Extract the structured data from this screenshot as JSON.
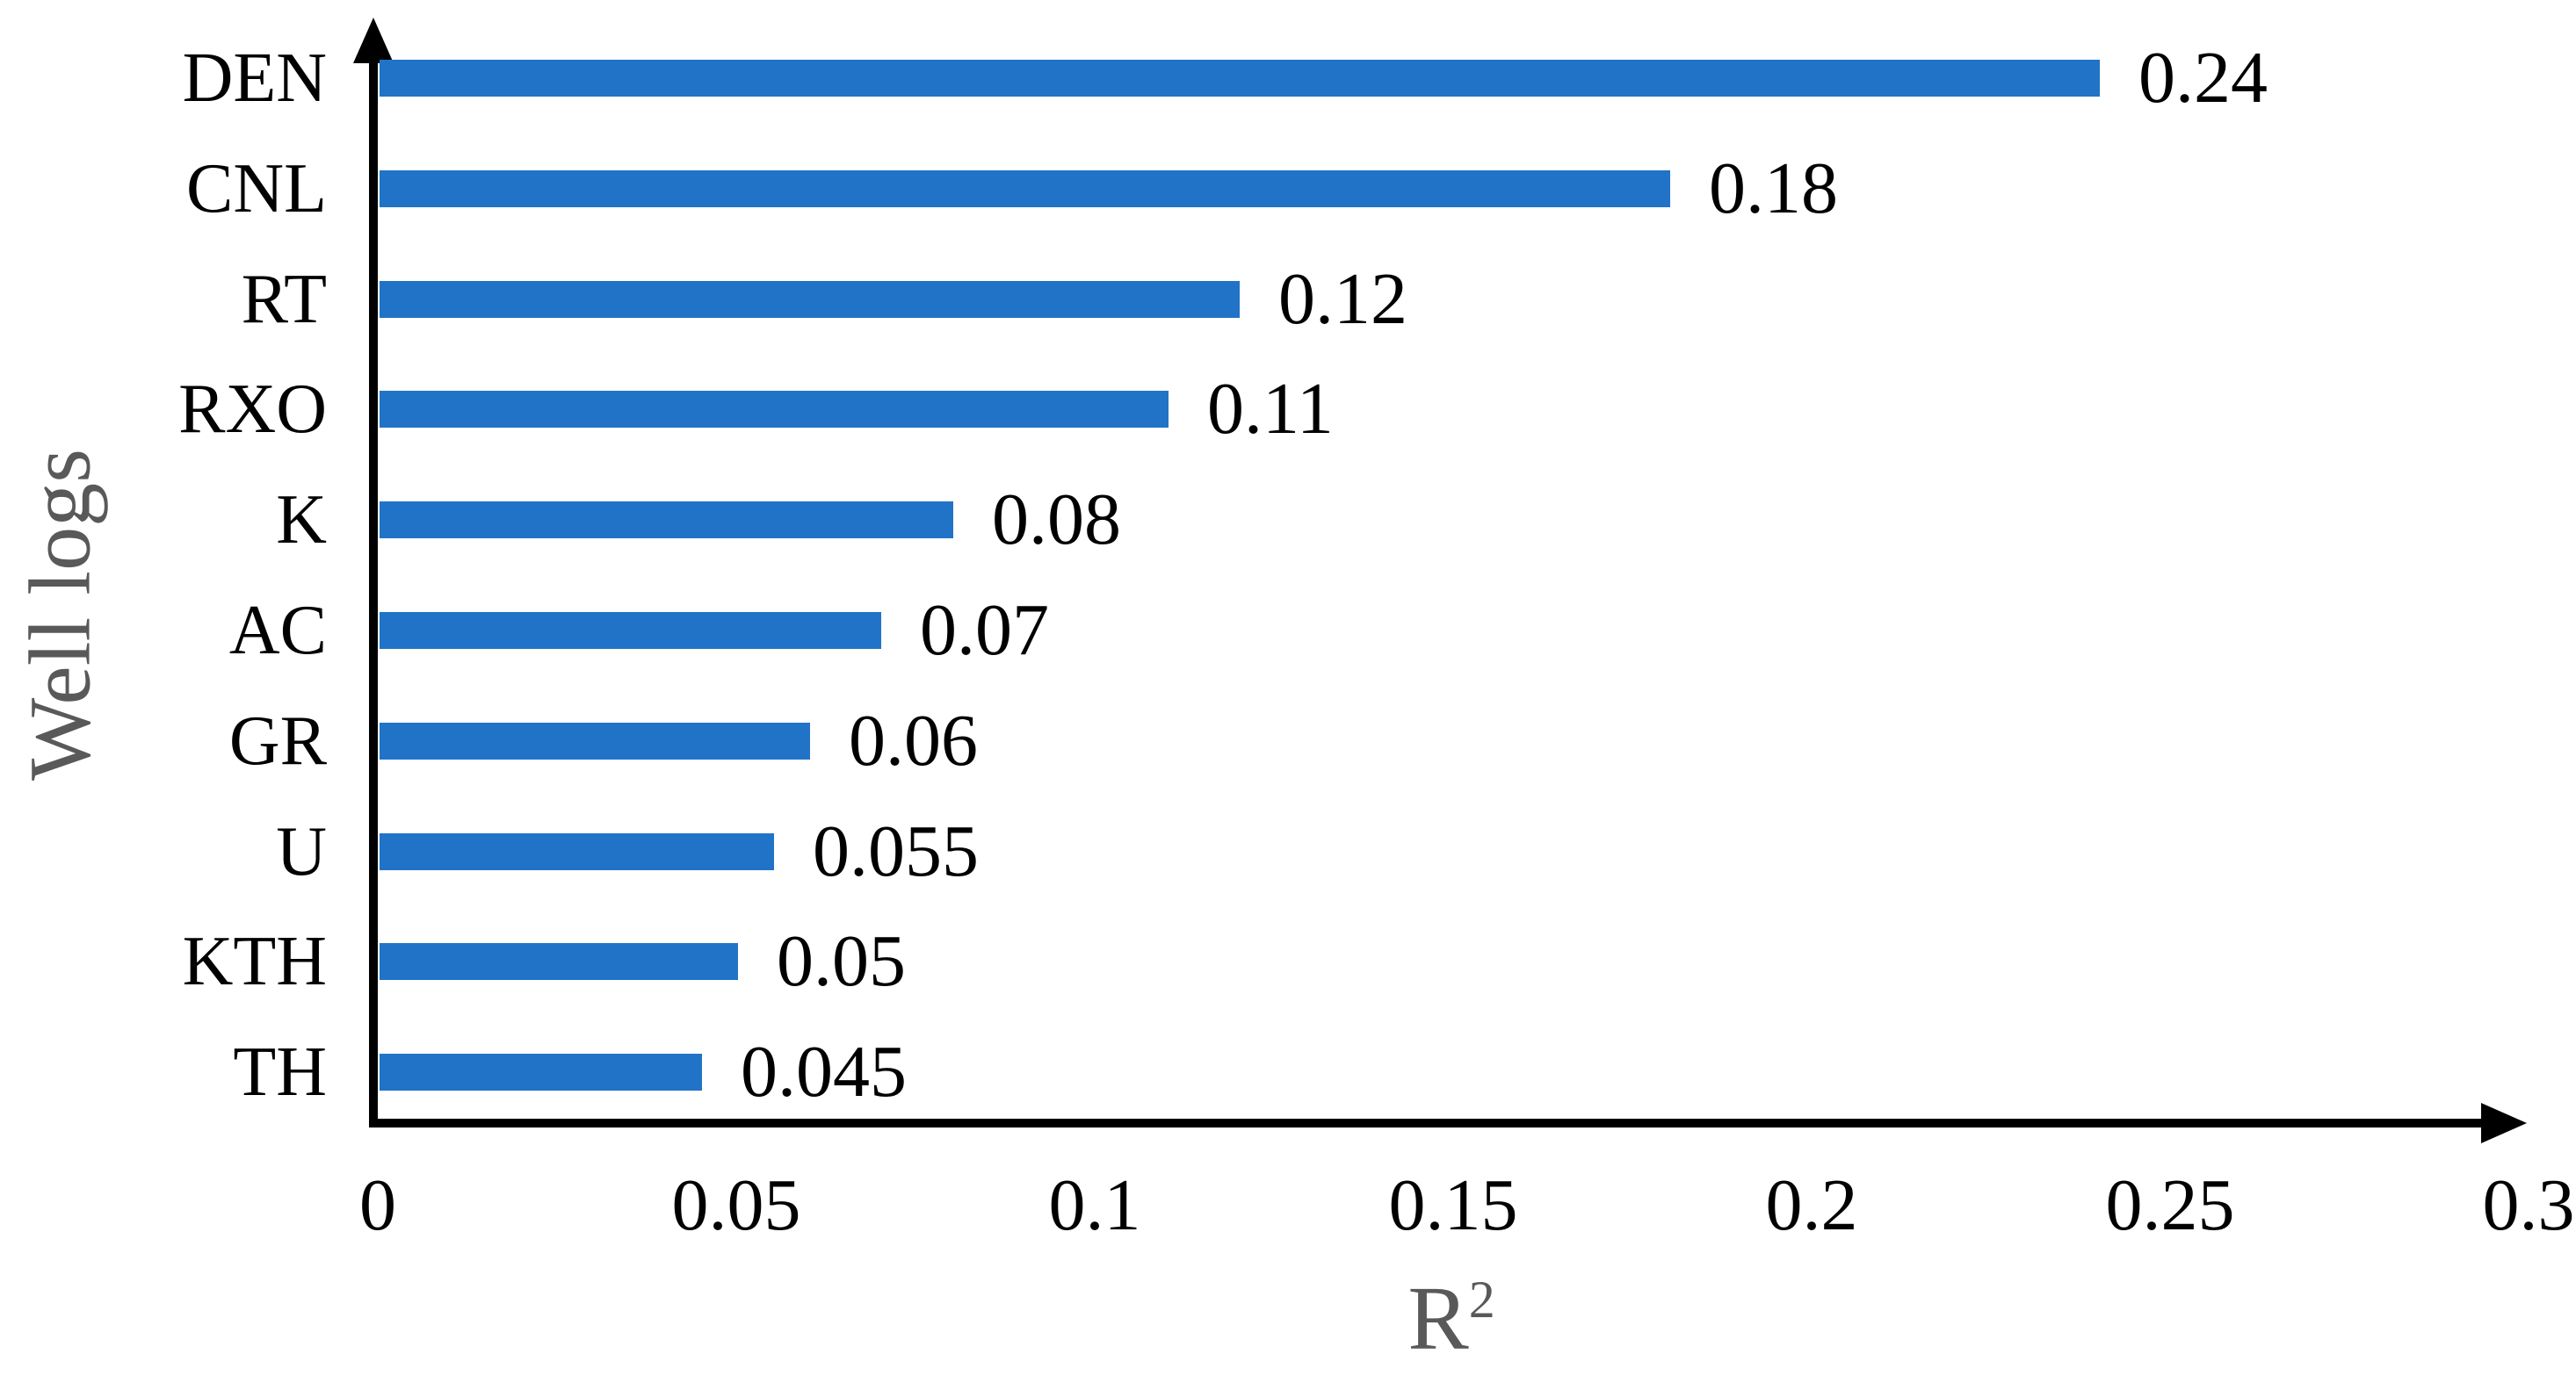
{
  "chart_data": {
    "type": "bar",
    "orientation": "horizontal",
    "title": "",
    "ylabel": "Well logs",
    "xlabel_base": "R",
    "xlabel_sup": "2",
    "categories": [
      "DEN",
      "CNL",
      "RT",
      "RXO",
      "K",
      "AC",
      "GR",
      "U",
      "KTH",
      "TH"
    ],
    "values": [
      0.24,
      0.18,
      0.12,
      0.11,
      0.08,
      0.07,
      0.06,
      0.055,
      0.05,
      0.045
    ],
    "value_labels": [
      "0.24",
      "0.18",
      "0.12",
      "0.11",
      "0.08",
      "0.07",
      "0.06",
      "0.055",
      "0.05",
      "0.045"
    ],
    "x_ticks": [
      0,
      0.05,
      0.1,
      0.15,
      0.2,
      0.25,
      0.3
    ],
    "x_tick_labels": [
      "0",
      "0.05",
      "0.1",
      "0.15",
      "0.2",
      "0.25",
      "0.3"
    ],
    "xlim": [
      0,
      0.3
    ],
    "grid": false,
    "legend": null,
    "bar_color": "#2173C7",
    "axis_color": "#000000",
    "label_color": "#000000",
    "axis_title_color": "#595959",
    "background_color": "#FFFFFF"
  }
}
